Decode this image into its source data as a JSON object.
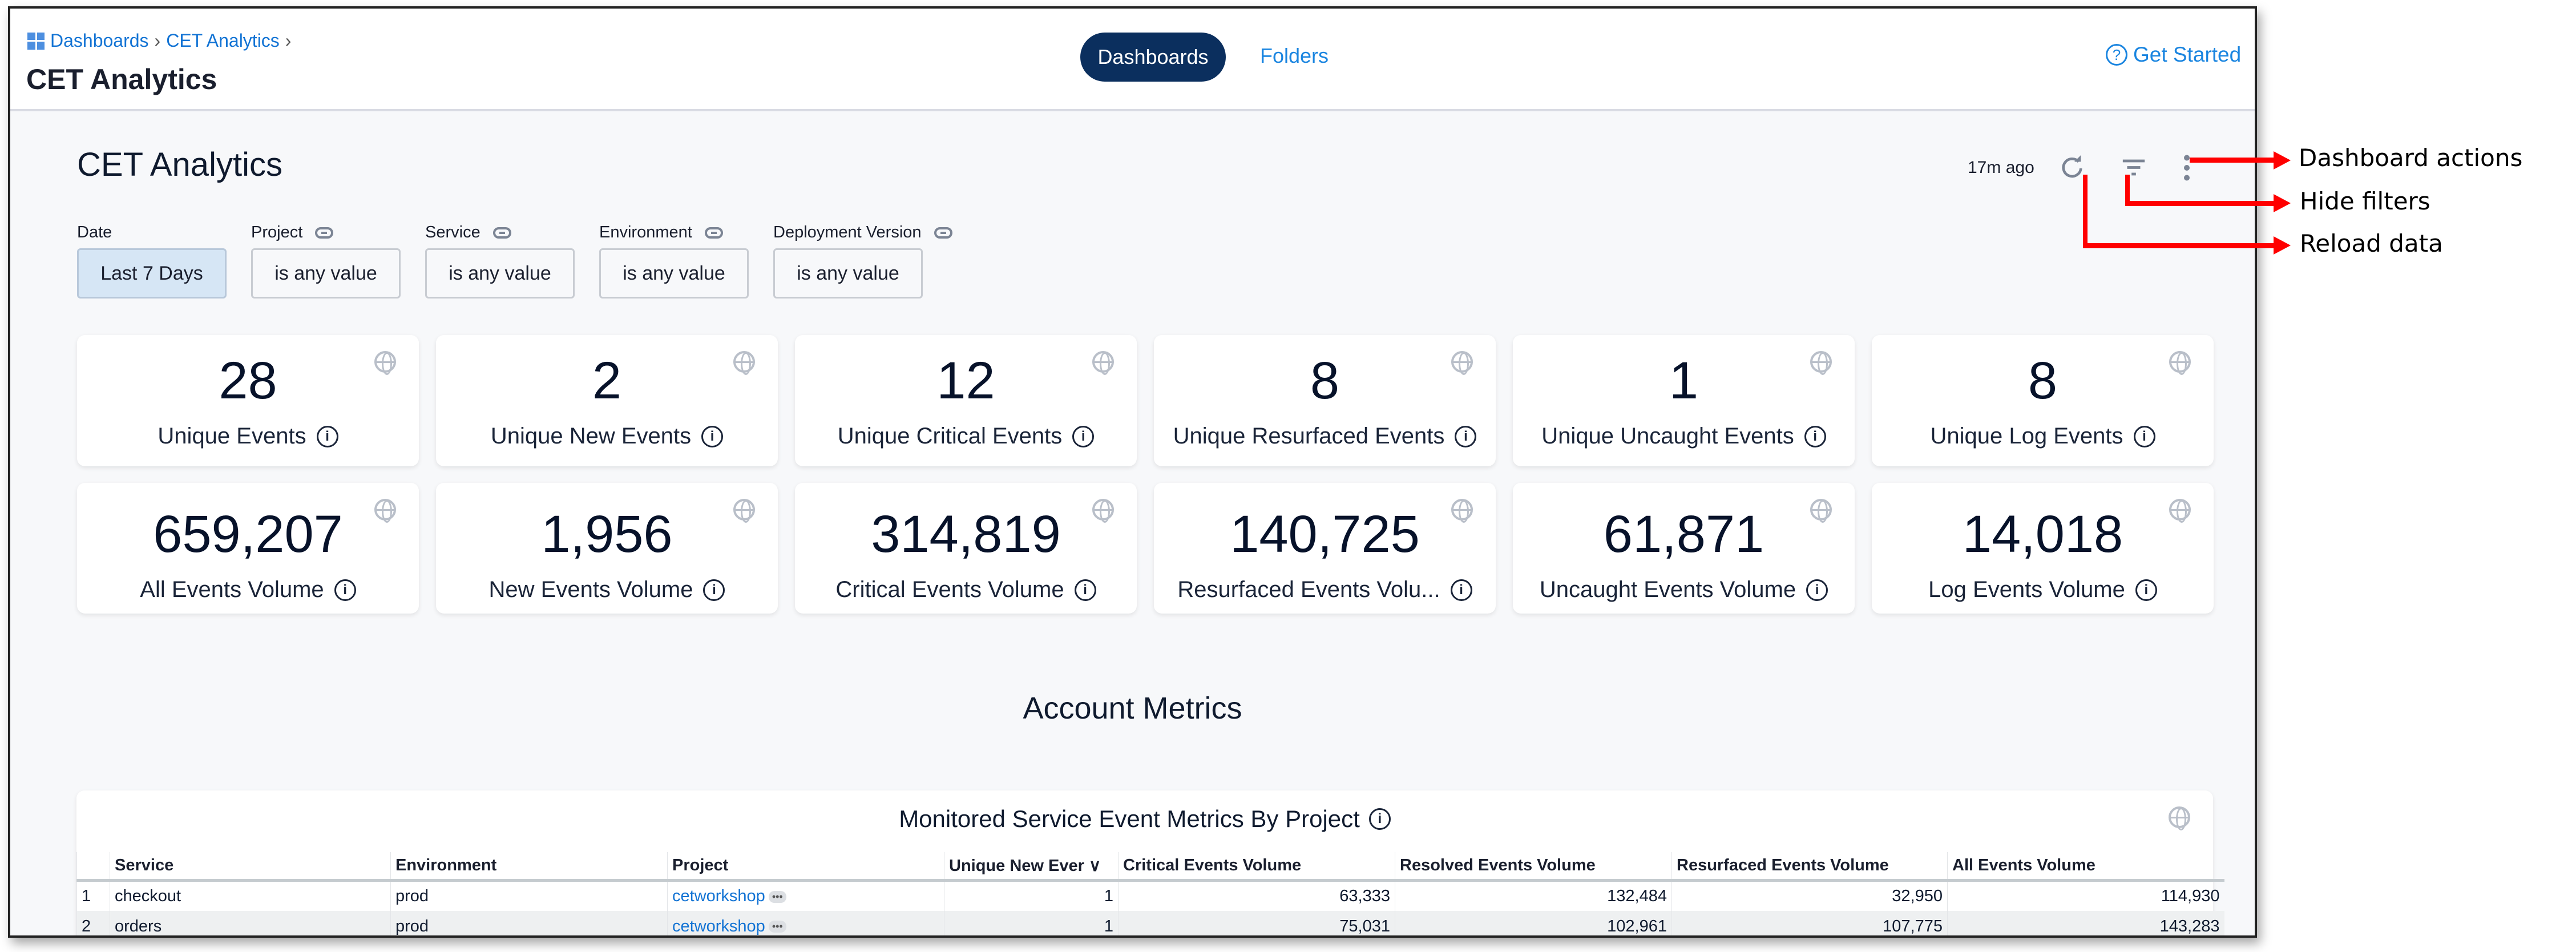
{
  "header": {
    "breadcrumb": [
      "Dashboards",
      "CET Analytics"
    ],
    "title": "CET Analytics",
    "nav": {
      "active": "Dashboards",
      "other": "Folders"
    },
    "get_started": "Get Started"
  },
  "dashboard": {
    "title": "CET Analytics",
    "last_updated": "17m ago"
  },
  "filters": [
    {
      "label": "Date",
      "value": "Last 7 Days",
      "linked": false,
      "selected": true
    },
    {
      "label": "Project",
      "value": "is any value",
      "linked": true
    },
    {
      "label": "Service",
      "value": "is any value",
      "linked": true
    },
    {
      "label": "Environment",
      "value": "is any value",
      "linked": true
    },
    {
      "label": "Deployment Version",
      "value": "is any value",
      "linked": true
    }
  ],
  "tiles": [
    {
      "value": "28",
      "label": "Unique Events"
    },
    {
      "value": "2",
      "label": "Unique New Events"
    },
    {
      "value": "12",
      "label": "Unique Critical Events"
    },
    {
      "value": "8",
      "label": "Unique Resurfaced Events"
    },
    {
      "value": "1",
      "label": "Unique Uncaught Events"
    },
    {
      "value": "8",
      "label": "Unique Log Events"
    },
    {
      "value": "659,207",
      "label": "All Events Volume"
    },
    {
      "value": "1,956",
      "label": "New Events Volume"
    },
    {
      "value": "314,819",
      "label": "Critical Events Volume"
    },
    {
      "value": "140,725",
      "label": "Resurfaced Events Volu..."
    },
    {
      "value": "61,871",
      "label": "Uncaught Events Volume"
    },
    {
      "value": "14,018",
      "label": "Log Events Volume"
    }
  ],
  "section_title": "Account Metrics",
  "table": {
    "title": "Monitored Service Event Metrics By Project",
    "columns": [
      "",
      "Service",
      "Environment",
      "Project",
      "Unique New Ever ∨",
      "Critical Events Volume",
      "Resolved Events Volume",
      "Resurfaced Events Volume",
      "All Events Volume"
    ],
    "rows": [
      [
        "1",
        "checkout",
        "prod",
        "cetworkshop",
        "1",
        "63,333",
        "132,484",
        "32,950",
        "114,930"
      ],
      [
        "2",
        "orders",
        "prod",
        "cetworkshop",
        "1",
        "75,031",
        "102,961",
        "107,775",
        "143,283"
      ]
    ]
  },
  "annotations": {
    "actions": "Dashboard actions",
    "hide_filters": "Hide filters",
    "reload": "Reload data",
    "color": "#ff0000"
  },
  "colors": {
    "accent": "#1273d4",
    "nav_active": "#0b2f5e",
    "date_filter": "#d6e6f5"
  }
}
